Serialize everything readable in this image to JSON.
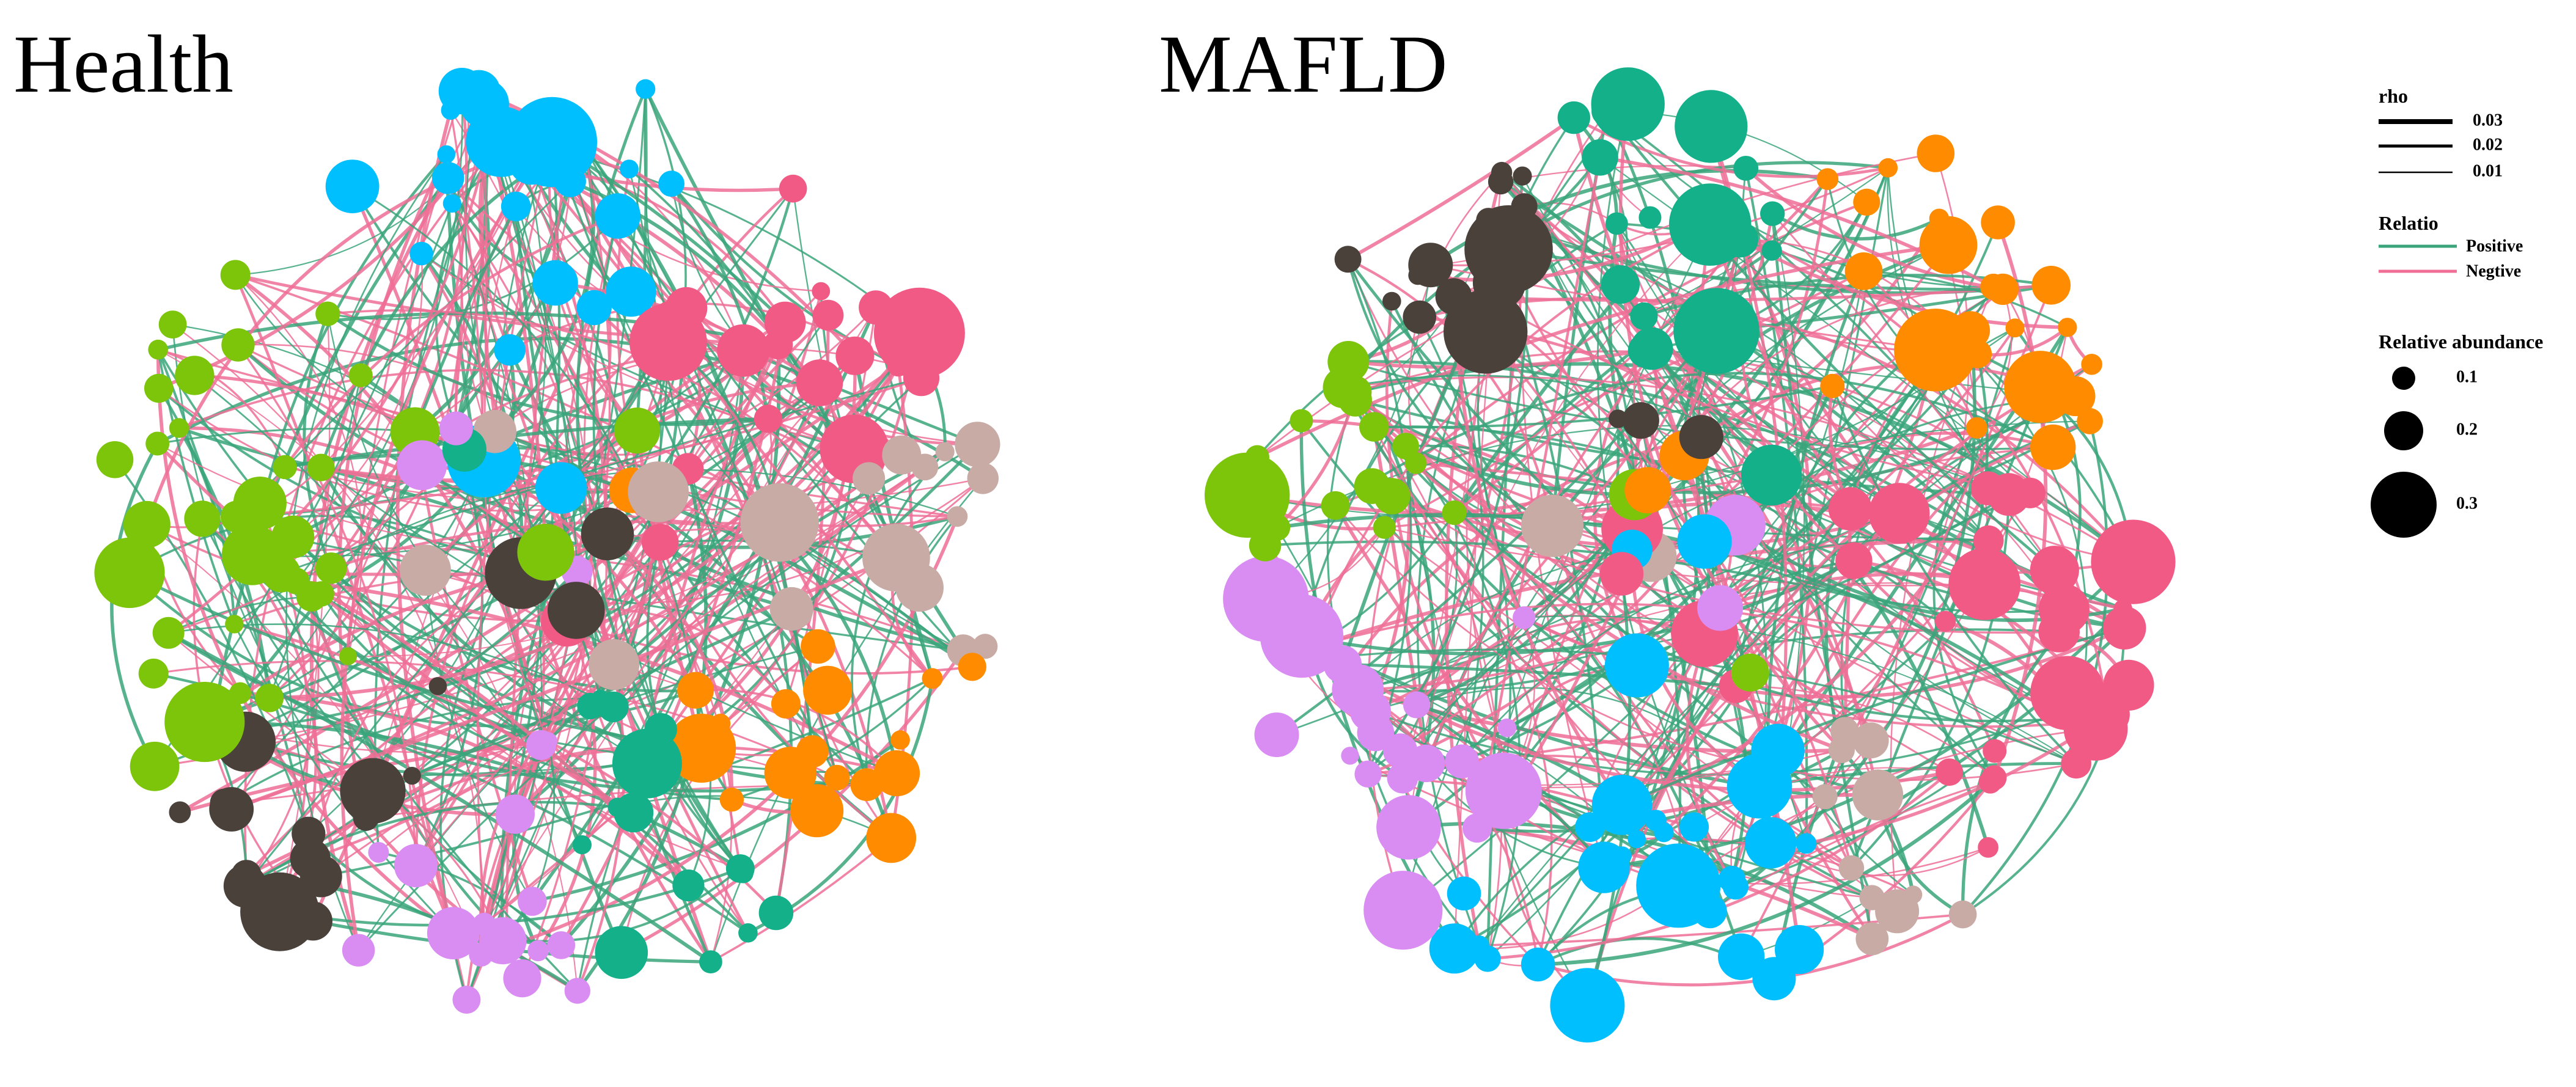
{
  "panels": [
    {
      "title": "Health"
    },
    {
      "title": "MAFLD"
    }
  ],
  "legend": {
    "rho": {
      "title": "rho",
      "labels": [
        "0.03",
        "0.02",
        "0.01"
      ]
    },
    "relation": {
      "title": "Relatio",
      "labels": [
        "Positive",
        "Negtive"
      ]
    },
    "abundance": {
      "title": "Relative abundance",
      "labels": [
        "0.1",
        "0.2",
        "0.3"
      ]
    }
  }
}
